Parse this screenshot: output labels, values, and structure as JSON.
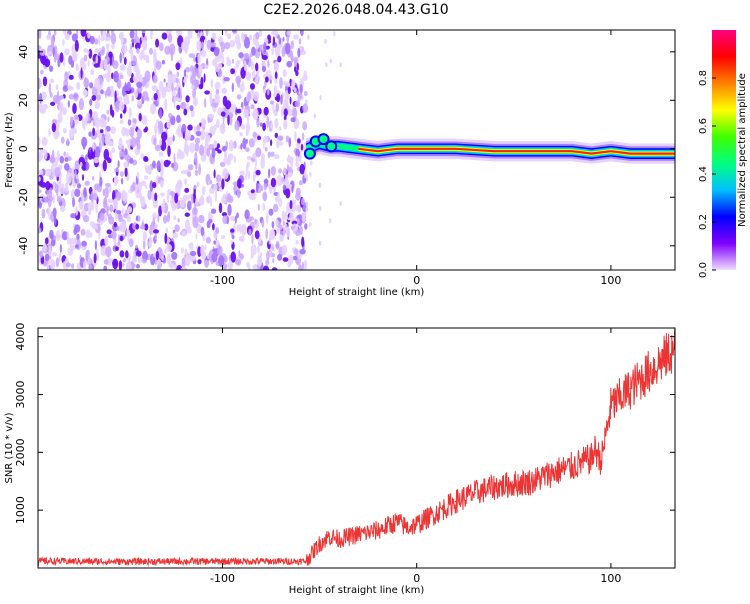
{
  "title": "C2E2.2026.048.04.43.G10",
  "chart_data": [
    {
      "type": "heatmap",
      "xlabel": "Height of straight line (km)",
      "ylabel": "Frequency (Hz)",
      "xlim": [
        -195,
        133
      ],
      "ylim": [
        -50,
        49
      ],
      "x_ticks": [
        -100,
        0,
        100
      ],
      "x_tick_labels": [
        "-100",
        "0",
        "100"
      ],
      "y_ticks": [
        -40,
        -20,
        0,
        20,
        40
      ],
      "y_tick_labels": [
        "-40",
        "-20",
        "0",
        "20",
        "40"
      ],
      "noise_region_x": [
        -195,
        -57
      ],
      "signal": {
        "x": [
          -57,
          -50,
          -45,
          -40,
          -30,
          -20,
          -10,
          0,
          10,
          20,
          40,
          60,
          80,
          90,
          100,
          110,
          133
        ],
        "freq": [
          0,
          2,
          1,
          1,
          0,
          -1,
          0,
          0,
          0,
          0,
          -1,
          -1,
          -1,
          -2,
          -1,
          -2,
          -2
        ]
      },
      "colorbar": {
        "label": "Normalized spectral amplitude",
        "range": [
          0,
          1
        ],
        "ticks": [
          0.0,
          0.2,
          0.4,
          0.6,
          0.8
        ],
        "tick_labels": [
          "0.0",
          "0.2",
          "0.4",
          "0.6",
          "0.8"
        ],
        "colors": [
          "#f0dcff",
          "#8000ff",
          "#0000ff",
          "#00c0ff",
          "#00ff80",
          "#40ff00",
          "#ffff00",
          "#ff8000",
          "#ff0000",
          "#ff0080"
        ]
      },
      "grid": false
    },
    {
      "type": "line",
      "xlabel": "Height of straight line (km)",
      "ylabel": "SNR (10 * v/v)",
      "xlim": [
        -195,
        133
      ],
      "ylim": [
        0,
        4150
      ],
      "x_ticks": [
        -100,
        0,
        100
      ],
      "x_tick_labels": [
        "-100",
        "0",
        "100"
      ],
      "y_ticks": [
        1000,
        2000,
        3000,
        4000
      ],
      "y_tick_labels": [
        "1000",
        "2000",
        "3000",
        "4000"
      ],
      "color": "#ee3333",
      "x": [
        -195,
        -150,
        -100,
        -60,
        -57,
        -50,
        -45,
        -40,
        -30,
        -20,
        -10,
        -5,
        0,
        10,
        20,
        30,
        40,
        50,
        60,
        70,
        80,
        90,
        92,
        95,
        100,
        110,
        120,
        133
      ],
      "values": [
        120,
        110,
        115,
        115,
        120,
        420,
        550,
        500,
        580,
        650,
        800,
        700,
        750,
        950,
        1150,
        1300,
        1400,
        1450,
        1500,
        1650,
        1750,
        1900,
        2050,
        1850,
        2800,
        3100,
        3400,
        3800
      ],
      "grid": false
    }
  ]
}
